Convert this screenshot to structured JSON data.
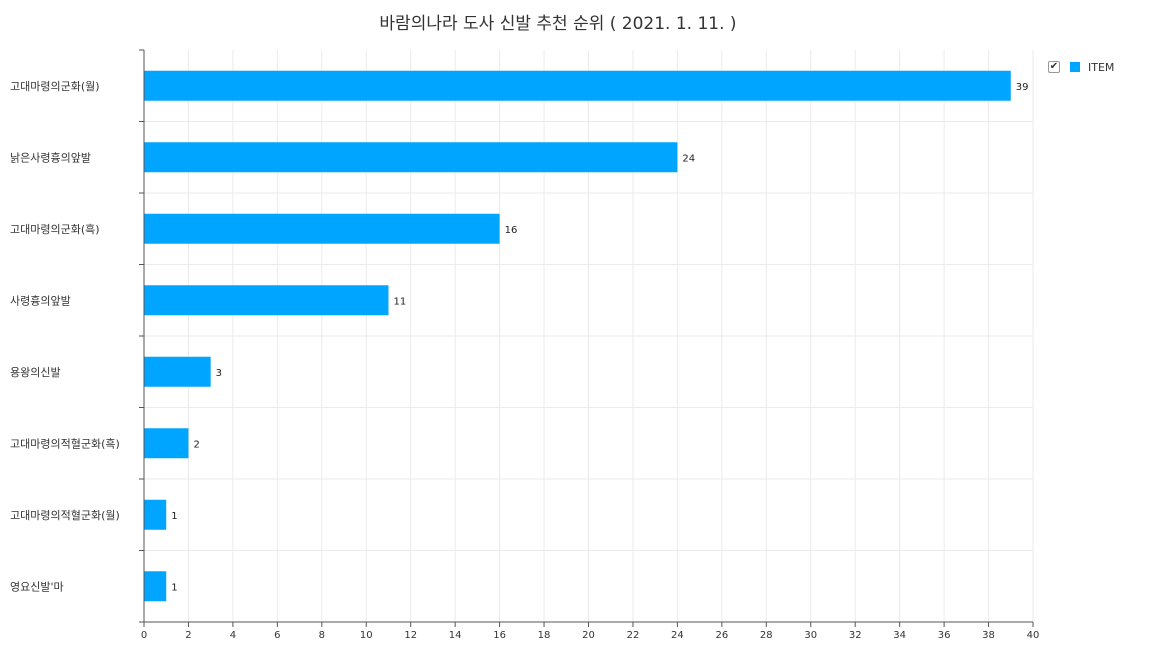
{
  "chart_data": {
    "type": "bar",
    "orientation": "horizontal",
    "title": "바람의나라 도사 신발 추천 순위 ( 2021. 1. 11. )",
    "categories": [
      "고대마령의군화(월)",
      "낡은사령흉의앞발",
      "고대마령의군화(흑)",
      "사령흉의앞발",
      "용왕의신발",
      "고대마령의적혈군화(흑)",
      "고대마령의적혈군화(월)",
      "영요신발'마"
    ],
    "series": [
      {
        "name": "ITEM",
        "values": [
          39,
          24,
          16,
          11,
          3,
          2,
          1,
          1
        ],
        "color": "#00a5ff"
      }
    ],
    "xlim": [
      0,
      40
    ],
    "xticks": [
      0,
      2,
      4,
      6,
      8,
      10,
      12,
      14,
      16,
      18,
      20,
      22,
      24,
      26,
      28,
      30,
      32,
      34,
      36,
      38,
      40
    ],
    "grid": true,
    "legend_position": "top-right",
    "data_labels": true,
    "legend_checked": true
  },
  "legend": {
    "checkmark_icon": "✔"
  }
}
